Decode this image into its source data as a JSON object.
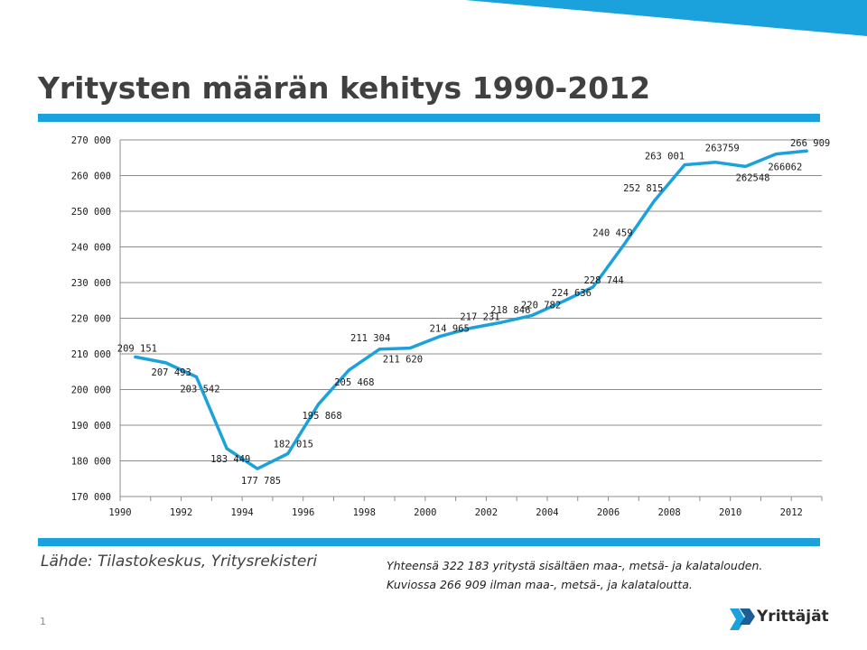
{
  "slide": {
    "title": "Yritysten määrän kehitys 1990-2012",
    "source": "Lähde: Tilastokeskus, Yritysrekisteri",
    "note_line1": "Yhteensä 322 183 yritystä sisältäen maa-, metsä- ja kalatalouden.",
    "note_line2": "Kuviossa 266 909 ilman maa-, metsä-, ja kalataloutta.",
    "page_number": "1",
    "logo_text": "Yrittäjät",
    "accent_color": "#1ba1dc"
  },
  "chart_data": {
    "type": "line",
    "title": "",
    "xlabel": "",
    "ylabel": "",
    "x": [
      1990,
      1991,
      1992,
      1993,
      1994,
      1995,
      1996,
      1997,
      1998,
      1999,
      2000,
      2001,
      2002,
      2003,
      2004,
      2005,
      2006,
      2007,
      2008,
      2009,
      2010,
      2011,
      2012
    ],
    "series": [
      {
        "values": [
          209151,
          207493,
          203542,
          183449,
          177785,
          182015,
          195868,
          205468,
          211304,
          211620,
          214965,
          217231,
          218846,
          220782,
          224636,
          228744,
          240459,
          252815,
          263001,
          263759,
          262548,
          266062,
          266909
        ],
        "color": "#1ba1dc"
      }
    ],
    "data_labels": [
      "209 151",
      "207 493",
      "203 542",
      "183 449",
      "177 785",
      "182 015",
      "195 868",
      "205 468",
      "211 304",
      "211 620",
      "214 965",
      "217 231",
      "218 846",
      "220 782",
      "224 636",
      "228 744",
      "240 459",
      "252 815",
      "263 001",
      "263759",
      "262548",
      "266062",
      "266 909"
    ],
    "ylim": [
      170000,
      270000
    ],
    "y_ticks": [
      170000,
      180000,
      190000,
      200000,
      210000,
      220000,
      230000,
      240000,
      250000,
      260000,
      270000
    ],
    "y_tick_labels": [
      "170 000",
      "180 000",
      "190 000",
      "200 000",
      "210 000",
      "220 000",
      "230 000",
      "240 000",
      "250 000",
      "260 000",
      "270 000"
    ],
    "x_tick_labels": [
      "1990",
      "1992",
      "1994",
      "1996",
      "1998",
      "2000",
      "2002",
      "2004",
      "2006",
      "2008",
      "2010",
      "2012"
    ],
    "grid": true,
    "legend": "none"
  }
}
